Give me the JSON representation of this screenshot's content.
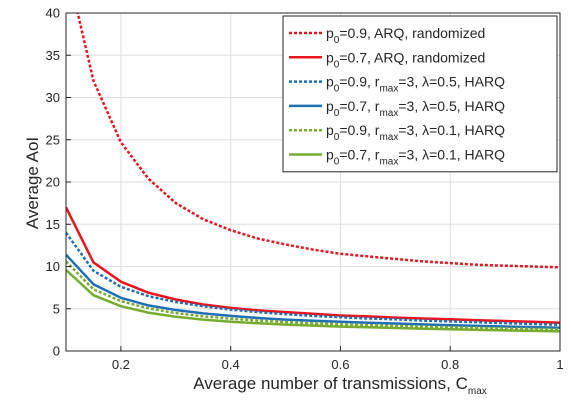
{
  "chart_data": {
    "type": "line",
    "xlabel": "Average number of transmissions, C",
    "xlabel_sub": "max",
    "ylabel": "Average AoI",
    "xlim": [
      0.1,
      1.0
    ],
    "ylim": [
      0,
      40
    ],
    "xticks": [
      0.2,
      0.4,
      0.6,
      0.8,
      1
    ],
    "xtick_labels": [
      "0.2",
      "0.4",
      "0.6",
      "0.8",
      "1"
    ],
    "yticks": [
      0,
      5,
      10,
      15,
      20,
      25,
      30,
      35,
      40
    ],
    "ytick_labels": [
      "0",
      "5",
      "10",
      "15",
      "20",
      "25",
      "30",
      "35",
      "40"
    ],
    "grid": true,
    "legend_position": "top-right",
    "x": [
      0.1,
      0.15,
      0.2,
      0.25,
      0.3,
      0.35,
      0.4,
      0.45,
      0.5,
      0.55,
      0.6,
      0.65,
      0.7,
      0.75,
      0.8,
      0.85,
      0.9,
      0.95,
      1.0
    ],
    "series": [
      {
        "legend": [
          {
            "t": "p"
          },
          {
            "t": "0",
            "sub": true
          },
          {
            "t": "=0.9, ARQ, randomized"
          }
        ],
        "color": "#e8141e",
        "dash": "dotted",
        "values": [
          46.0,
          32.0,
          24.7,
          20.4,
          17.5,
          15.6,
          14.3,
          13.3,
          12.6,
          12.0,
          11.5,
          11.2,
          10.9,
          10.6,
          10.4,
          10.2,
          10.1,
          10.0,
          9.9
        ]
      },
      {
        "legend": [
          {
            "t": "p"
          },
          {
            "t": "0",
            "sub": true
          },
          {
            "t": "=0.7, ARQ, randomized"
          }
        ],
        "color": "#e8141e",
        "dash": "solid",
        "values": [
          17.0,
          10.5,
          8.2,
          6.9,
          6.1,
          5.5,
          5.1,
          4.8,
          4.6,
          4.4,
          4.2,
          4.1,
          3.95,
          3.85,
          3.75,
          3.65,
          3.55,
          3.45,
          3.35
        ]
      },
      {
        "legend": [
          {
            "t": "p"
          },
          {
            "t": "0",
            "sub": true
          },
          {
            "t": "=0.9, r"
          },
          {
            "t": "max",
            "sub": true
          },
          {
            "t": "=3, λ=0.5, HARQ"
          }
        ],
        "color": "#1f6fb5",
        "dash": "dotted",
        "values": [
          14.0,
          9.5,
          7.6,
          6.5,
          5.8,
          5.3,
          4.9,
          4.6,
          4.35,
          4.15,
          4.0,
          3.85,
          3.75,
          3.6,
          3.5,
          3.4,
          3.3,
          3.2,
          3.1
        ]
      },
      {
        "legend": [
          {
            "t": "p"
          },
          {
            "t": "0",
            "sub": true
          },
          {
            "t": "=0.7, r"
          },
          {
            "t": "max",
            "sub": true
          },
          {
            "t": "=3, λ=0.5, HARQ"
          }
        ],
        "color": "#1f6fb5",
        "dash": "solid",
        "values": [
          11.4,
          7.9,
          6.3,
          5.4,
          4.85,
          4.45,
          4.15,
          3.9,
          3.72,
          3.58,
          3.45,
          3.35,
          3.25,
          3.15,
          3.05,
          2.97,
          2.9,
          2.83,
          2.75
        ]
      },
      {
        "legend": [
          {
            "t": "p"
          },
          {
            "t": "0",
            "sub": true
          },
          {
            "t": "=0.9, r"
          },
          {
            "t": "max",
            "sub": true
          },
          {
            "t": "=3, λ=0.1, HARQ"
          }
        ],
        "color": "#77ac30",
        "dash": "dotted",
        "values": [
          10.6,
          7.3,
          5.9,
          5.05,
          4.5,
          4.1,
          3.82,
          3.6,
          3.42,
          3.28,
          3.16,
          3.06,
          2.97,
          2.89,
          2.82,
          2.75,
          2.69,
          2.63,
          2.58
        ]
      },
      {
        "legend": [
          {
            "t": "p"
          },
          {
            "t": "0",
            "sub": true
          },
          {
            "t": "=0.7, r"
          },
          {
            "t": "max",
            "sub": true
          },
          {
            "t": "=3, λ=0.1, HARQ"
          }
        ],
        "color": "#77ac30",
        "dash": "solid",
        "values": [
          9.6,
          6.6,
          5.3,
          4.55,
          4.05,
          3.72,
          3.47,
          3.28,
          3.12,
          3.0,
          2.89,
          2.8,
          2.72,
          2.64,
          2.57,
          2.5,
          2.44,
          2.38,
          2.32
        ]
      }
    ]
  }
}
